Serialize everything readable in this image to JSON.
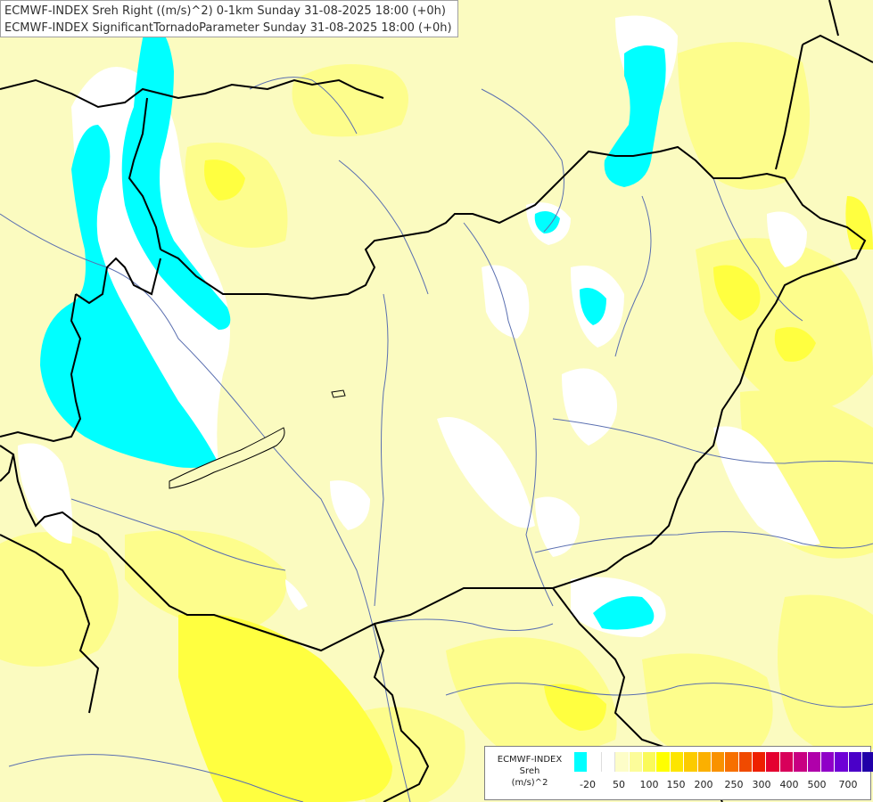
{
  "header": {
    "line1": "ECMWF-INDEX Sreh Right ((m/s)^2) 0-1km Sunday 31-08-2025 18:00 (+0h)",
    "line2": "ECMWF-INDEX SignificantTornadoParameter Sunday 31-08-2025 18:00 (+0h)"
  },
  "legend": {
    "line1": "ECMWF-INDEX",
    "line2": "Sreh",
    "line3": "(m/s)^2",
    "ticks": [
      "-20",
      "50",
      "100",
      "150",
      "200",
      "250",
      "300",
      "400",
      "500",
      "700"
    ],
    "colors": [
      "#00ffff",
      "#ffffff",
      "#ffffff",
      "#fdfdc8",
      "#fcfc9a",
      "#fafa5a",
      "#ffff00",
      "#fde500",
      "#fccb00",
      "#fbb000",
      "#f99200",
      "#f77000",
      "#f04a00",
      "#ee2000",
      "#e40030",
      "#d8005a",
      "#c80082",
      "#b000aa",
      "#9000c8",
      "#6e00d6",
      "#4a00c8",
      "#2000a8",
      "#000080"
    ]
  },
  "map_colors": {
    "background": "#fbfbc0",
    "light_yellow": "#fdfd9a",
    "yellow": "#ffff50",
    "bright_yellow": "#ffff00",
    "cyan": "#00ffff",
    "white": "#ffffff",
    "border": "#000000",
    "river": "#5a6fb0"
  }
}
